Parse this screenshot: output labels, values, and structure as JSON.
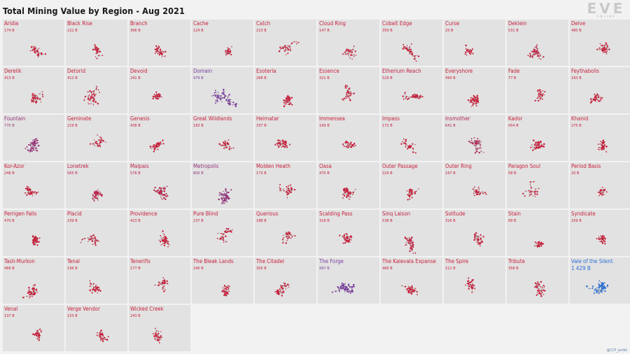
{
  "title": "Total Mining Value by Region - Aug 2021",
  "logo": {
    "text": "EVE",
    "subtext": "ONLINE"
  },
  "credit": "@CCP_Lerikk",
  "colors": {
    "background": "#f2f2f2",
    "tile": "#e2e2e2",
    "low": "#c81f3a",
    "high": "#7a3fa0",
    "top": "#2b6fd6"
  },
  "chart_data": {
    "type": "small-multiples",
    "title": "Total Mining Value by Region - Aug 2021",
    "unit": "B",
    "regions": [
      {
        "name": "Aridia",
        "label": "174 B",
        "value": 174
      },
      {
        "name": "Black Rise",
        "label": "222 B",
        "value": 222
      },
      {
        "name": "Branch",
        "label": "366 B",
        "value": 366
      },
      {
        "name": "Cache",
        "label": "124 B",
        "value": 124
      },
      {
        "name": "Catch",
        "label": "223 B",
        "value": 223
      },
      {
        "name": "Cloud Ring",
        "label": "147 B",
        "value": 147
      },
      {
        "name": "Cobalt Edge",
        "label": "359 B",
        "value": 359
      },
      {
        "name": "Curse",
        "label": "25 B",
        "value": 25
      },
      {
        "name": "Deklein",
        "label": "531 B",
        "value": 531
      },
      {
        "name": "Delve",
        "label": "480 B",
        "value": 480
      },
      {
        "name": "Derelik",
        "label": "413 B",
        "value": 413
      },
      {
        "name": "Detorid",
        "label": "412 B",
        "value": 412
      },
      {
        "name": "Devoid",
        "label": "241 B",
        "value": 241
      },
      {
        "name": "Domain",
        "label": "979 B",
        "value": 979
      },
      {
        "name": "Esoteria",
        "label": "268 B",
        "value": 268
      },
      {
        "name": "Essence",
        "label": "321 B",
        "value": 321
      },
      {
        "name": "Etherium Reach",
        "label": "529 B",
        "value": 529
      },
      {
        "name": "Everyshore",
        "label": "494 B",
        "value": 494
      },
      {
        "name": "Fade",
        "label": "77 B",
        "value": 77
      },
      {
        "name": "Feythabolis",
        "label": "183 B",
        "value": 183
      },
      {
        "name": "Fountain",
        "label": "775 B",
        "value": 775
      },
      {
        "name": "Geminate",
        "label": "219 B",
        "value": 219
      },
      {
        "name": "Genesis",
        "label": "438 B",
        "value": 438
      },
      {
        "name": "Great Wildlands",
        "label": "183 B",
        "value": 183
      },
      {
        "name": "Heimatar",
        "label": "337 B",
        "value": 337
      },
      {
        "name": "Immensea",
        "label": "169 B",
        "value": 169
      },
      {
        "name": "Impass",
        "label": "172 B",
        "value": 172
      },
      {
        "name": "Insmother",
        "label": "641 B",
        "value": 641
      },
      {
        "name": "Kador",
        "label": "454 B",
        "value": 454
      },
      {
        "name": "Khanid",
        "label": "275 B",
        "value": 275
      },
      {
        "name": "Kor-Azor",
        "label": "248 B",
        "value": 248
      },
      {
        "name": "Lonetrek",
        "label": "565 B",
        "value": 565
      },
      {
        "name": "Malpais",
        "label": "576 B",
        "value": 576
      },
      {
        "name": "Metropolis",
        "label": "800 B",
        "value": 800
      },
      {
        "name": "Molden Heath",
        "label": "173 B",
        "value": 173
      },
      {
        "name": "Oasa",
        "label": "475 B",
        "value": 475
      },
      {
        "name": "Outer Passage",
        "label": "224 B",
        "value": 224
      },
      {
        "name": "Outer Ring",
        "label": "167 B",
        "value": 167
      },
      {
        "name": "Paragon Soul",
        "label": "58 B",
        "value": 58
      },
      {
        "name": "Period Basis",
        "label": "20 B",
        "value": 20
      },
      {
        "name": "Perrigen Falls",
        "label": "470 B",
        "value": 470
      },
      {
        "name": "Placid",
        "label": "239 B",
        "value": 239
      },
      {
        "name": "Providence",
        "label": "423 B",
        "value": 423
      },
      {
        "name": "Pure Blind",
        "label": "237 B",
        "value": 237
      },
      {
        "name": "Querious",
        "label": "188 B",
        "value": 188
      },
      {
        "name": "Scalding Pass",
        "label": "318 B",
        "value": 318
      },
      {
        "name": "Sinq Laison",
        "label": "538 B",
        "value": 538
      },
      {
        "name": "Solitude",
        "label": "316 B",
        "value": 316
      },
      {
        "name": "Stain",
        "label": "99 B",
        "value": 99
      },
      {
        "name": "Syndicate",
        "label": "259 B",
        "value": 259
      },
      {
        "name": "Tash-Murkon",
        "label": "466 B",
        "value": 466
      },
      {
        "name": "Tenal",
        "label": "196 B",
        "value": 196
      },
      {
        "name": "Tenerifis",
        "label": "177 B",
        "value": 177
      },
      {
        "name": "The Bleak Lands",
        "label": "240 B",
        "value": 240
      },
      {
        "name": "The Citadel",
        "label": "305 B",
        "value": 305
      },
      {
        "name": "The Forge",
        "label": "997 B",
        "value": 997
      },
      {
        "name": "The Kalevala Expanse",
        "label": "466 B",
        "value": 466
      },
      {
        "name": "The Spire",
        "label": "211 B",
        "value": 211
      },
      {
        "name": "Tribute",
        "label": "358 B",
        "value": 358
      },
      {
        "name": "Vale of the Silent",
        "label": "1 429 B",
        "value": 1429
      },
      {
        "name": "Venal",
        "label": "137 B",
        "value": 137
      },
      {
        "name": "Verge Vendor",
        "label": "153 B",
        "value": 153
      },
      {
        "name": "Wicked Creek",
        "label": "243 B",
        "value": 243
      }
    ]
  }
}
